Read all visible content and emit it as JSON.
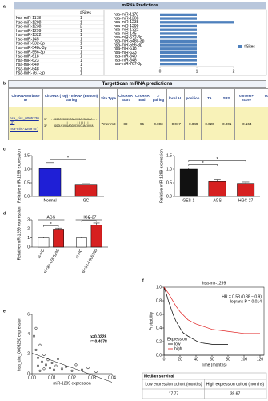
{
  "panel_labels": [
    "a",
    "b",
    "c",
    "d",
    "e",
    "f"
  ],
  "targetscan": {
    "title": "TargetScan miRNA predictions",
    "columns": [
      "CircRNA Mirbase ID",
      "CircRNA (Top) - miRNA (Bottom) pairing",
      "Site Type",
      "CircRNA Start",
      "CircRNA End",
      "3' pairing",
      "local AU",
      "position",
      "TA",
      "SPS",
      "context+ score",
      "context+ score percentile"
    ],
    "ids": [
      "hsa_circ_0005230 (3')",
      "hsa-miR-1299 (5')"
    ],
    "pairing": [
      "5' ...GGGGUGGGUGGAUGGAUGAGAA...",
      "          |  |     |||||||",
      "3'    GGGUCUUGAGGUCUUCUACUCUU"
    ],
    "cells": [
      "7mer-m8",
      "89",
      "95",
      "0.003",
      "-0.017",
      "-0.049",
      "0.020",
      "-0.001",
      "-0.164",
      "92"
    ]
  },
  "survival": {
    "title": "Median survival",
    "headers": [
      "Low expression cohort (months)",
      "High expression cohort (months)"
    ],
    "values": [
      "17.77",
      "39.67"
    ]
  },
  "chart_data": [
    {
      "type": "hbar",
      "title": "miRNA Predictions",
      "legend": "#Sites",
      "color": "#4f81bd",
      "categories": [
        "hsa-miR-1178",
        "hsa-miR-1208",
        "hsa-miR-1238",
        "hsa-miR-1299",
        "hsa-miR-1322",
        "hsa-miR-145",
        "hsa-miR-532-3p",
        "hsa-miR-548c-3p",
        "hsa-miR-556-3p",
        "hsa-miR-618",
        "hsa-miR-623",
        "hsa-miR-640",
        "hsa-miR-648",
        "hsa-miR-767-3p"
      ],
      "values": [
        1,
        1,
        2,
        1,
        1,
        1,
        1,
        1,
        1,
        1,
        1,
        1,
        1,
        1
      ],
      "xlim": [
        0,
        2
      ],
      "xticks": [
        0,
        1,
        2
      ]
    },
    {
      "type": "bar",
      "categories": [
        "Normal",
        "GC"
      ],
      "values": [
        1.02,
        0.42
      ],
      "errors": [
        0.22,
        0.05
      ],
      "colors": [
        "#1f1fd6",
        "#d62020"
      ],
      "ylabel": "Relative miR-1299 expression",
      "ylim": [
        0,
        1.5
      ],
      "yticks": [
        {
          "value": 0,
          "label": "0.0"
        },
        {
          "value": 0.5,
          "label": "0.5"
        },
        {
          "value": 1,
          "label": "1.0"
        },
        {
          "value": 1.5,
          "label": "1.5"
        }
      ],
      "annotations": [
        "*"
      ]
    },
    {
      "type": "bar",
      "categories": [
        "GES-1",
        "AGS",
        "HGC-27"
      ],
      "values": [
        1.0,
        0.55,
        0.48
      ],
      "errors": [
        0.05,
        0.08,
        0.05
      ],
      "colors": [
        "#111111",
        "#d62020",
        "#d62020"
      ],
      "ylabel": "Relative miR-1299 expression",
      "ylim": [
        0,
        1.5
      ],
      "yticks": [
        {
          "value": 0,
          "label": "0.0"
        },
        {
          "value": 0.5,
          "label": "0.5"
        },
        {
          "value": 1,
          "label": "1.0"
        },
        {
          "value": 1.5,
          "label": "1.5"
        }
      ],
      "annotations": [
        "*",
        "*"
      ]
    },
    {
      "type": "grouped",
      "categories": [
        "AGS",
        "HGC-27"
      ],
      "series": [
        {
          "name": "si-NC",
          "color": "#ffffff",
          "values": [
            1.0,
            1.0
          ],
          "errors": [
            0.1,
            0.1
          ]
        },
        {
          "name": "si-circ-0005230",
          "color": "#d62020",
          "values": [
            1.9,
            2.4
          ],
          "errors": [
            0.2,
            0.25
          ]
        }
      ],
      "ylabel": "Relative miR-1299 expression",
      "ylim": [
        0,
        3
      ],
      "yticks": [
        0,
        1,
        2,
        3
      ],
      "annotations": [
        "*",
        "*"
      ]
    },
    {
      "type": "scatter",
      "xlabel": "miR-1299 expression",
      "ylabel": "hsa_circ_0005230 expression",
      "x": [
        0.001,
        0.002,
        0.003,
        0.003,
        0.004,
        0.005,
        0.006,
        0.006,
        0.007,
        0.008,
        0.009,
        0.01,
        0.011,
        0.012,
        0.013,
        0.015,
        0.017,
        0.02,
        0.022,
        0.025,
        0.028,
        0.032,
        0.004,
        0.002
      ],
      "y": [
        3.8,
        2.4,
        1.6,
        0.8,
        2.9,
        1.2,
        0.5,
        1.9,
        0.9,
        1.4,
        0.6,
        1.1,
        0.4,
        0.8,
        1.5,
        0.5,
        0.7,
        0.3,
        0.9,
        0.4,
        0.6,
        0.2,
        0.3,
        4.6
      ],
      "xlim": [
        0,
        0.04
      ],
      "xticks": [
        {
          "value": 0,
          "label": "0.00"
        },
        {
          "value": 0.01,
          "label": "0.01"
        },
        {
          "value": 0.02,
          "label": "0.02"
        },
        {
          "value": 0.03,
          "label": "0.03"
        },
        {
          "value": 0.04,
          "label": "0.04"
        }
      ],
      "ylim": [
        0,
        6
      ],
      "yticks": [
        0,
        2,
        4,
        6
      ],
      "annotations": [
        "p=0.0228",
        "r=-0.4078"
      ]
    },
    {
      "type": "km",
      "title": "hsa-mir-1299",
      "xlabel": "Time (months)",
      "ylabel": "Probability",
      "legend_title": "Expression",
      "annotations": [
        "HR = 0.58 (0.38 − 0.9)",
        "logrank P = 0.014"
      ],
      "series": [
        {
          "name": "low",
          "color": "#000000",
          "x": [
            0,
            3,
            6,
            9,
            12,
            15,
            18,
            21,
            24,
            30,
            36,
            42,
            48,
            60,
            70,
            80
          ],
          "values": [
            1,
            0.9,
            0.78,
            0.68,
            0.58,
            0.5,
            0.44,
            0.38,
            0.33,
            0.28,
            0.24,
            0.2,
            0.18,
            0.16,
            0.16,
            0.16
          ]
        },
        {
          "name": "high",
          "color": "#e02020",
          "x": [
            0,
            5,
            10,
            15,
            20,
            25,
            30,
            40,
            50,
            60,
            80,
            100,
            120
          ],
          "values": [
            1,
            0.92,
            0.82,
            0.72,
            0.64,
            0.58,
            0.52,
            0.46,
            0.42,
            0.38,
            0.35,
            0.32,
            0.32
          ]
        }
      ],
      "xlim": [
        0,
        125
      ],
      "xticks": [
        0,
        20,
        40,
        60,
        80,
        100,
        120
      ],
      "ylim": [
        0,
        1
      ],
      "yticks": [
        {
          "value": 0,
          "label": "0.0"
        },
        {
          "value": 0.2,
          "label": "0.2"
        },
        {
          "value": 0.4,
          "label": "0.4"
        },
        {
          "value": 0.6,
          "label": "0.6"
        },
        {
          "value": 0.8,
          "label": "0.8"
        },
        {
          "value": 1,
          "label": "1.0"
        }
      ]
    }
  ]
}
